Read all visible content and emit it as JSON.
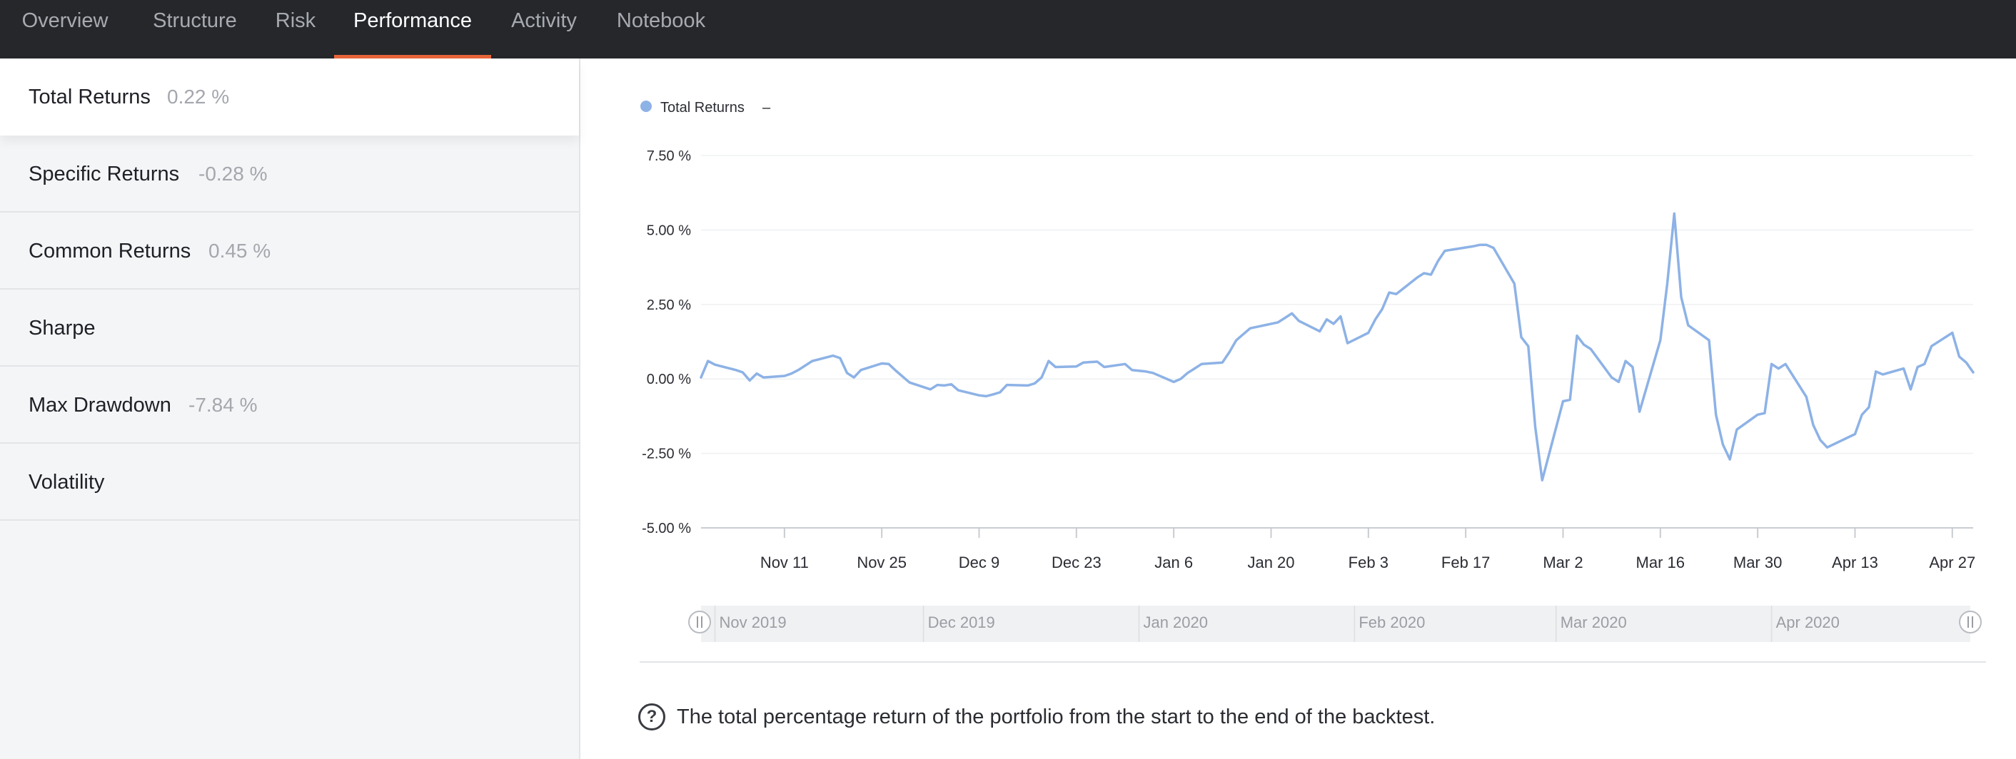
{
  "tabs": [
    {
      "label": "Overview",
      "active": false
    },
    {
      "label": "Structure",
      "active": false
    },
    {
      "label": "Risk",
      "active": false
    },
    {
      "label": "Performance",
      "active": true
    },
    {
      "label": "Activity",
      "active": false
    },
    {
      "label": "Notebook",
      "active": false
    }
  ],
  "metrics": [
    {
      "label": "Total Returns",
      "value": "0.22 %",
      "active": true
    },
    {
      "label": "Specific Returns",
      "value": "-0.28 %",
      "active": false
    },
    {
      "label": "Common Returns",
      "value": "0.45 %",
      "active": false
    },
    {
      "label": "Sharpe",
      "value": "",
      "active": false
    },
    {
      "label": "Max Drawdown",
      "value": "-7.84 %",
      "active": false
    },
    {
      "label": "Volatility",
      "value": "",
      "active": false
    }
  ],
  "footer": {
    "help_glyph": "?",
    "description": "The total percentage return of the portfolio from the start to the end of the backtest."
  },
  "colors": {
    "accent": "#e8653a",
    "line": "#8db2e6",
    "nav_bg": "#25272b"
  },
  "chart_data": {
    "type": "line",
    "legend": [
      {
        "name": "Total Returns",
        "value": "–"
      }
    ],
    "y_ticks": [
      "7.50 %",
      "5.00 %",
      "2.50 %",
      "0.00 %",
      "-2.50 %",
      "-5.00 %"
    ],
    "ylim": [
      -5,
      7.5
    ],
    "x_ticks": [
      "Nov 11",
      "Nov 25",
      "Dec 9",
      "Dec 23",
      "Jan 6",
      "Jan 20",
      "Feb 3",
      "Feb 17",
      "Mar 2",
      "Mar 16",
      "Mar 30",
      "Apr 13",
      "Apr 27"
    ],
    "navigator_labels": [
      "Nov 2019",
      "Dec 2019",
      "Jan 2020",
      "Feb 2020",
      "Mar 2020",
      "Apr 2020"
    ],
    "grid": true,
    "series": [
      {
        "name": "Total Returns",
        "points": [
          [
            "2019-10-30",
            0.05
          ],
          [
            "2019-10-31",
            0.6
          ],
          [
            "2019-11-01",
            0.48
          ],
          [
            "2019-11-04",
            0.3
          ],
          [
            "2019-11-05",
            0.22
          ],
          [
            "2019-11-06",
            -0.05
          ],
          [
            "2019-11-07",
            0.18
          ],
          [
            "2019-11-08",
            0.05
          ],
          [
            "2019-11-11",
            0.1
          ],
          [
            "2019-11-12",
            0.18
          ],
          [
            "2019-11-13",
            0.3
          ],
          [
            "2019-11-14",
            0.45
          ],
          [
            "2019-11-15",
            0.6
          ],
          [
            "2019-11-18",
            0.78
          ],
          [
            "2019-11-19",
            0.7
          ],
          [
            "2019-11-20",
            0.2
          ],
          [
            "2019-11-21",
            0.05
          ],
          [
            "2019-11-22",
            0.3
          ],
          [
            "2019-11-25",
            0.52
          ],
          [
            "2019-11-26",
            0.5
          ],
          [
            "2019-11-27",
            0.28
          ],
          [
            "2019-11-29",
            -0.12
          ],
          [
            "2019-12-02",
            -0.35
          ],
          [
            "2019-12-03",
            -0.2
          ],
          [
            "2019-12-04",
            -0.22
          ],
          [
            "2019-12-05",
            -0.18
          ],
          [
            "2019-12-06",
            -0.38
          ],
          [
            "2019-12-09",
            -0.55
          ],
          [
            "2019-12-10",
            -0.58
          ],
          [
            "2019-12-11",
            -0.52
          ],
          [
            "2019-12-12",
            -0.45
          ],
          [
            "2019-12-13",
            -0.2
          ],
          [
            "2019-12-16",
            -0.22
          ],
          [
            "2019-12-17",
            -0.15
          ],
          [
            "2019-12-18",
            0.05
          ],
          [
            "2019-12-19",
            0.6
          ],
          [
            "2019-12-20",
            0.4
          ],
          [
            "2019-12-23",
            0.42
          ],
          [
            "2019-12-24",
            0.55
          ],
          [
            "2019-12-26",
            0.58
          ],
          [
            "2019-12-27",
            0.4
          ],
          [
            "2019-12-30",
            0.5
          ],
          [
            "2019-12-31",
            0.3
          ],
          [
            "2020-01-02",
            0.25
          ],
          [
            "2020-01-03",
            0.2
          ],
          [
            "2020-01-06",
            -0.1
          ],
          [
            "2020-01-07",
            0.0
          ],
          [
            "2020-01-08",
            0.2
          ],
          [
            "2020-01-09",
            0.35
          ],
          [
            "2020-01-10",
            0.5
          ],
          [
            "2020-01-13",
            0.55
          ],
          [
            "2020-01-14",
            0.9
          ],
          [
            "2020-01-15",
            1.3
          ],
          [
            "2020-01-16",
            1.5
          ],
          [
            "2020-01-17",
            1.7
          ],
          [
            "2020-01-21",
            1.9
          ],
          [
            "2020-01-22",
            2.05
          ],
          [
            "2020-01-23",
            2.2
          ],
          [
            "2020-01-24",
            1.95
          ],
          [
            "2020-01-27",
            1.6
          ],
          [
            "2020-01-28",
            2.0
          ],
          [
            "2020-01-29",
            1.85
          ],
          [
            "2020-01-30",
            2.1
          ],
          [
            "2020-01-31",
            1.2
          ],
          [
            "2020-02-03",
            1.55
          ],
          [
            "2020-02-04",
            2.0
          ],
          [
            "2020-02-05",
            2.35
          ],
          [
            "2020-02-06",
            2.9
          ],
          [
            "2020-02-07",
            2.85
          ],
          [
            "2020-02-10",
            3.4
          ],
          [
            "2020-02-11",
            3.55
          ],
          [
            "2020-02-12",
            3.5
          ],
          [
            "2020-02-13",
            3.95
          ],
          [
            "2020-02-14",
            4.3
          ],
          [
            "2020-02-18",
            4.45
          ],
          [
            "2020-02-19",
            4.5
          ],
          [
            "2020-02-20",
            4.5
          ],
          [
            "2020-02-21",
            4.4
          ],
          [
            "2020-02-24",
            3.2
          ],
          [
            "2020-02-25",
            1.4
          ],
          [
            "2020-02-26",
            1.1
          ],
          [
            "2020-02-27",
            -1.6
          ],
          [
            "2020-02-28",
            -3.4
          ],
          [
            "2020-03-02",
            -0.75
          ],
          [
            "2020-03-03",
            -0.7
          ],
          [
            "2020-03-04",
            1.45
          ],
          [
            "2020-03-05",
            1.15
          ],
          [
            "2020-03-06",
            1.0
          ],
          [
            "2020-03-09",
            0.05
          ],
          [
            "2020-03-10",
            -0.1
          ],
          [
            "2020-03-11",
            0.6
          ],
          [
            "2020-03-12",
            0.4
          ],
          [
            "2020-03-13",
            -1.1
          ],
          [
            "2020-03-16",
            1.3
          ],
          [
            "2020-03-17",
            3.2
          ],
          [
            "2020-03-18",
            5.55
          ],
          [
            "2020-03-19",
            2.75
          ],
          [
            "2020-03-20",
            1.8
          ],
          [
            "2020-03-23",
            1.3
          ],
          [
            "2020-03-24",
            -1.2
          ],
          [
            "2020-03-25",
            -2.2
          ],
          [
            "2020-03-26",
            -2.7
          ],
          [
            "2020-03-27",
            -1.7
          ],
          [
            "2020-03-30",
            -1.2
          ],
          [
            "2020-03-31",
            -1.15
          ],
          [
            "2020-04-01",
            0.5
          ],
          [
            "2020-04-02",
            0.35
          ],
          [
            "2020-04-03",
            0.5
          ],
          [
            "2020-04-06",
            -0.6
          ],
          [
            "2020-04-07",
            -1.55
          ],
          [
            "2020-04-08",
            -2.05
          ],
          [
            "2020-04-09",
            -2.3
          ],
          [
            "2020-04-13",
            -1.85
          ],
          [
            "2020-04-14",
            -1.2
          ],
          [
            "2020-04-15",
            -0.95
          ],
          [
            "2020-04-16",
            0.25
          ],
          [
            "2020-04-17",
            0.15
          ],
          [
            "2020-04-20",
            0.35
          ],
          [
            "2020-04-21",
            -0.35
          ],
          [
            "2020-04-22",
            0.4
          ],
          [
            "2020-04-23",
            0.5
          ],
          [
            "2020-04-24",
            1.1
          ],
          [
            "2020-04-27",
            1.55
          ],
          [
            "2020-04-28",
            0.75
          ],
          [
            "2020-04-29",
            0.55
          ],
          [
            "2020-04-30",
            0.22
          ]
        ]
      }
    ]
  }
}
